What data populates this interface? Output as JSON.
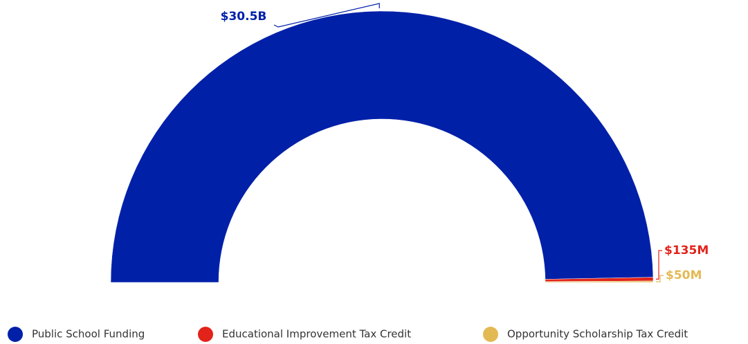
{
  "chart_data": {
    "type": "semi-donut",
    "categories": [
      "Public School Funding",
      "Educational Improvement Tax Credit",
      "Opportunity Scholarship Tax Credit"
    ],
    "values": [
      30500000000,
      135000000,
      50000000
    ],
    "value_labels": [
      "$30.5B",
      "$135M",
      "$50M"
    ],
    "colors": [
      "#0020a8",
      "#e2231a",
      "#e3b953"
    ],
    "legend": "bottom"
  }
}
